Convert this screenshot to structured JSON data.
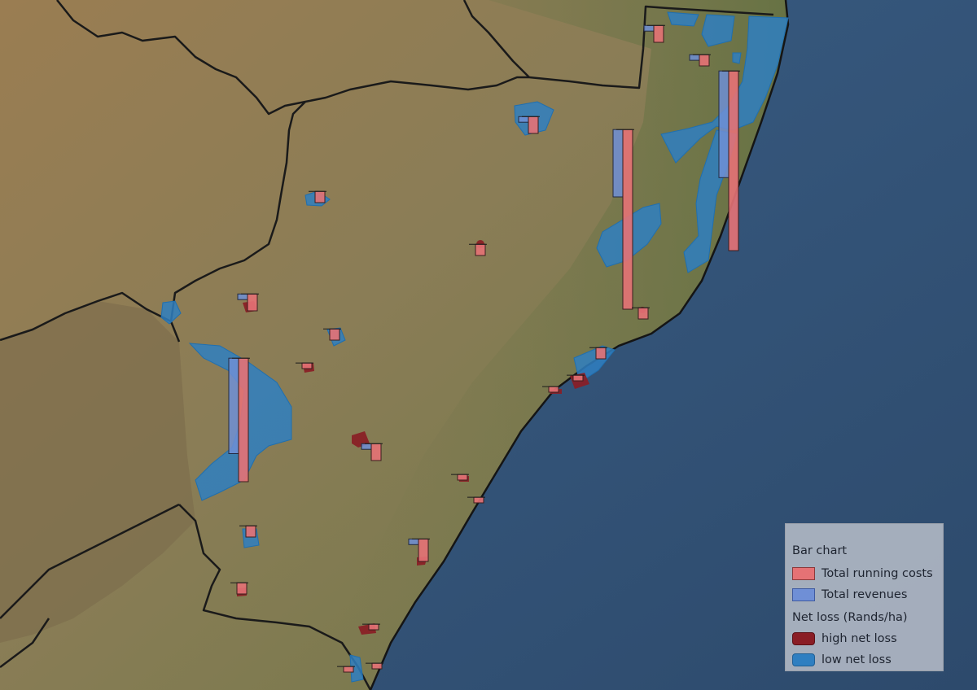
{
  "legend": {
    "bar_title": "Bar chart",
    "cost_label": "Total running costs",
    "revenue_label": "Total revenues",
    "netloss_title": "Net loss (Rands/ha)",
    "high_label": "high net loss",
    "low_label": "low net loss"
  },
  "colors": {
    "ocean": "#2f4f73",
    "land": "#8c7c55",
    "running_costs": "#e57275",
    "revenues": "#6f8fd6",
    "high_net_loss": "#8a1d25",
    "low_net_loss": "#2f7fc1",
    "border": "#1a1a1a"
  },
  "chart_data": {
    "type": "bar",
    "series": [
      {
        "name": "Total running costs",
        "values": [
          3,
          2,
          32,
          2,
          3,
          2,
          3,
          2,
          32,
          22,
          1,
          2,
          3,
          2,
          1,
          1,
          1,
          1,
          2,
          4,
          2,
          1,
          1,
          1
        ]
      },
      {
        "name": "Total revenues",
        "values": [
          1,
          1,
          19,
          0,
          1,
          0,
          1,
          0,
          12,
          17,
          0,
          0,
          1,
          0,
          0,
          0,
          0,
          0,
          0,
          1,
          0,
          0,
          0,
          0
        ]
      }
    ]
  }
}
